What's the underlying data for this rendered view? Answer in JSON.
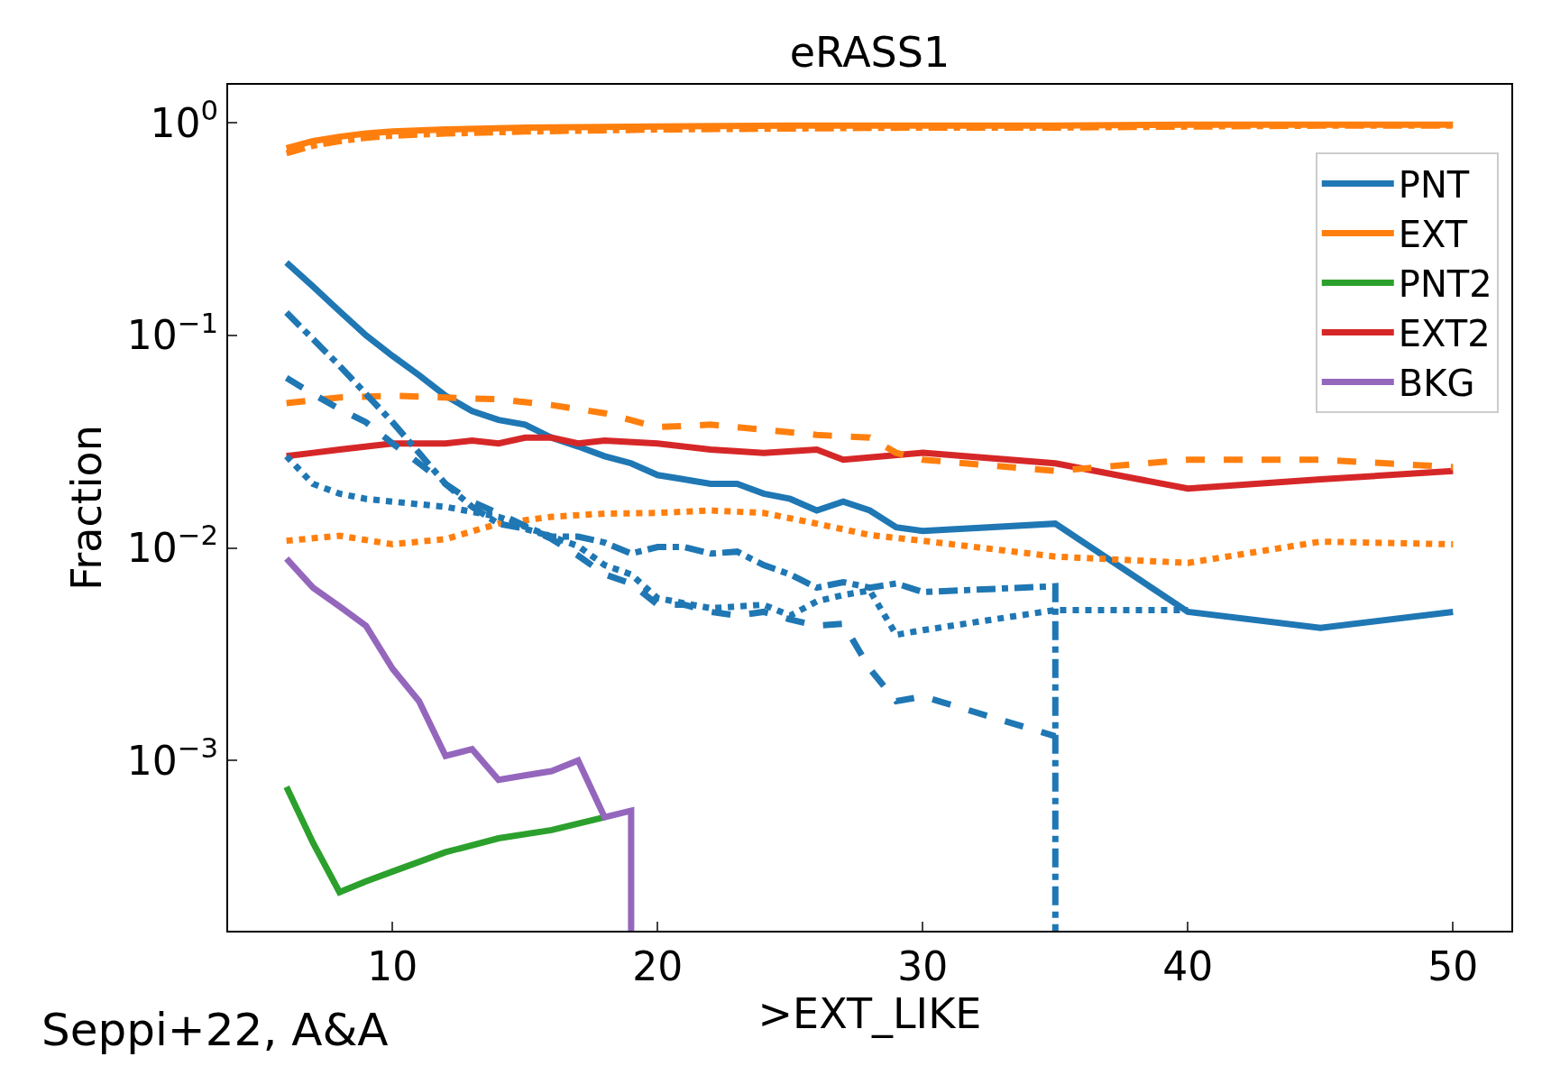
{
  "chart_data": {
    "type": "line",
    "title": "eRASS1",
    "xlabel": ">EXT_LIKE",
    "ylabel": "Fraction",
    "annotations": [
      "Seppi+22, A&A"
    ],
    "log": "y",
    "legend": "top right",
    "xlim": [
      3.8,
      52.2
    ],
    "xticks": [
      10,
      20,
      30,
      40,
      50
    ],
    "ylim": [
      0.000158,
      1.51
    ],
    "yticks": [
      {
        "value": 1,
        "label": "10$^{0}$"
      },
      {
        "value": 0.1,
        "label": "10$^{−1}$"
      },
      {
        "value": 0.01,
        "label": "10$^{−2}$"
      },
      {
        "value": 0.001,
        "label": "10$^{−3}$"
      }
    ],
    "series": [
      {
        "name": "PNT",
        "color": "#1f77b4",
        "line_style": "solid",
        "x": [
          6,
          7,
          8,
          9,
          10,
          11,
          12,
          13,
          14,
          15,
          16,
          17,
          18,
          19,
          20,
          21,
          22,
          23,
          24,
          25,
          26,
          27,
          28,
          29,
          30,
          35,
          40,
          45,
          50
        ],
        "values": [
          0.22,
          0.17,
          0.13,
          0.1,
          0.08,
          0.065,
          0.052,
          0.044,
          0.04,
          0.038,
          0.033,
          0.03,
          0.027,
          0.025,
          0.022,
          0.021,
          0.02,
          0.02,
          0.018,
          0.017,
          0.015,
          0.0165,
          0.015,
          0.0125,
          0.012,
          0.013,
          0.005,
          0.0042,
          0.005
        ]
      },
      {
        "name": "EXT",
        "color": "#ff7f0e",
        "line_style": "solid",
        "x": [
          6,
          7,
          8,
          9,
          10,
          12,
          15,
          20,
          25,
          30,
          35,
          40,
          45,
          50
        ],
        "values": [
          0.76,
          0.82,
          0.86,
          0.89,
          0.91,
          0.93,
          0.95,
          0.96,
          0.97,
          0.97,
          0.97,
          0.98,
          0.98,
          0.98
        ]
      },
      {
        "name": "PNT2",
        "color": "#2ca02c",
        "line_style": "solid",
        "x": [
          6,
          7,
          8,
          9,
          10,
          12,
          14,
          16,
          18
        ],
        "values": [
          0.00075,
          0.00041,
          0.00024,
          0.00027,
          0.0003,
          0.00037,
          0.00043,
          0.00047,
          0.00054
        ]
      },
      {
        "name": "EXT2",
        "color": "#d62728",
        "line_style": "solid",
        "x": [
          6,
          7,
          8,
          10,
          12,
          13,
          14,
          15,
          16,
          17,
          18,
          20,
          22,
          24,
          26,
          27,
          30,
          35,
          40,
          45,
          50
        ],
        "values": [
          0.027,
          0.028,
          0.029,
          0.031,
          0.031,
          0.032,
          0.031,
          0.033,
          0.033,
          0.031,
          0.032,
          0.031,
          0.029,
          0.028,
          0.029,
          0.026,
          0.028,
          0.025,
          0.019,
          0.021,
          0.023
        ]
      },
      {
        "name": "BKG",
        "color": "#9467bd",
        "line_style": "solid",
        "x": [
          6,
          7,
          8,
          9,
          10,
          11,
          12,
          13,
          14,
          15,
          16,
          17,
          18,
          19,
          19
        ],
        "values": [
          0.0089,
          0.0065,
          0.0053,
          0.0043,
          0.0027,
          0.0019,
          0.00105,
          0.00113,
          0.00081,
          0.00085,
          0.00089,
          0.001,
          0.00054,
          0.00058,
          0.000158
        ]
      },
      {
        "color": "#ff7f0e",
        "line_style": "dashdot",
        "x": [
          6,
          7,
          8,
          9,
          10,
          12,
          15,
          20,
          25,
          30,
          35,
          40,
          45,
          50
        ],
        "values": [
          0.72,
          0.78,
          0.82,
          0.85,
          0.87,
          0.89,
          0.91,
          0.93,
          0.94,
          0.95,
          0.95,
          0.96,
          0.97,
          0.97
        ]
      },
      {
        "color": "#ff7f0e",
        "line_style": "dashed",
        "x": [
          6,
          8,
          10,
          12,
          14,
          16,
          18,
          20,
          22,
          24,
          26,
          28,
          29,
          30,
          35,
          40,
          45,
          50
        ],
        "values": [
          0.048,
          0.051,
          0.052,
          0.051,
          0.05,
          0.047,
          0.043,
          0.037,
          0.038,
          0.036,
          0.034,
          0.033,
          0.028,
          0.026,
          0.023,
          0.026,
          0.026,
          0.024
        ]
      },
      {
        "color": "#ff7f0e",
        "line_style": "dotted",
        "x": [
          6,
          8,
          10,
          12,
          14,
          16,
          18,
          20,
          22,
          24,
          26,
          28,
          30,
          35,
          40,
          45,
          50
        ],
        "values": [
          0.0108,
          0.0114,
          0.0104,
          0.011,
          0.013,
          0.014,
          0.0145,
          0.0146,
          0.015,
          0.0146,
          0.013,
          0.0115,
          0.0108,
          0.0091,
          0.0085,
          0.0107,
          0.0104
        ]
      },
      {
        "color": "#1f77b4",
        "line_style": "dashdot",
        "x": [
          6,
          7,
          8,
          9,
          10,
          11,
          12,
          13,
          14,
          15,
          16,
          17,
          18,
          19,
          20,
          21,
          22,
          23,
          24,
          25,
          26,
          27,
          28,
          29,
          30,
          35,
          35
        ],
        "values": [
          0.128,
          0.096,
          0.072,
          0.053,
          0.039,
          0.028,
          0.02,
          0.0156,
          0.013,
          0.0123,
          0.0113,
          0.0113,
          0.0106,
          0.0094,
          0.0101,
          0.0101,
          0.0094,
          0.0096,
          0.0083,
          0.0075,
          0.0065,
          0.0069,
          0.0065,
          0.0068,
          0.0062,
          0.0066,
          0.000158
        ]
      },
      {
        "color": "#1f77b4",
        "line_style": "dashed",
        "x": [
          6,
          7,
          8,
          9,
          10,
          11,
          12,
          13,
          14,
          15,
          16,
          17,
          18,
          19,
          20,
          21,
          22,
          23,
          24,
          25,
          26,
          27,
          28,
          29,
          30,
          35
        ],
        "values": [
          0.063,
          0.053,
          0.045,
          0.039,
          0.031,
          0.025,
          0.02,
          0.0165,
          0.0145,
          0.0127,
          0.011,
          0.0092,
          0.0075,
          0.0068,
          0.0054,
          0.0054,
          0.005,
          0.0048,
          0.005,
          0.0046,
          0.0043,
          0.0044,
          0.0027,
          0.0019,
          0.002,
          0.0013
        ]
      },
      {
        "color": "#1f77b4",
        "line_style": "dotted",
        "x": [
          6,
          7,
          8,
          9,
          10,
          12,
          14,
          16,
          17,
          18,
          19,
          20,
          22,
          24,
          25,
          26,
          27,
          28,
          29,
          30,
          35,
          40
        ],
        "values": [
          0.027,
          0.02,
          0.018,
          0.017,
          0.0165,
          0.0156,
          0.014,
          0.0113,
          0.0102,
          0.0083,
          0.0075,
          0.0058,
          0.0052,
          0.0054,
          0.0048,
          0.0056,
          0.006,
          0.0063,
          0.0039,
          0.0041,
          0.0051,
          0.0051
        ]
      }
    ]
  }
}
